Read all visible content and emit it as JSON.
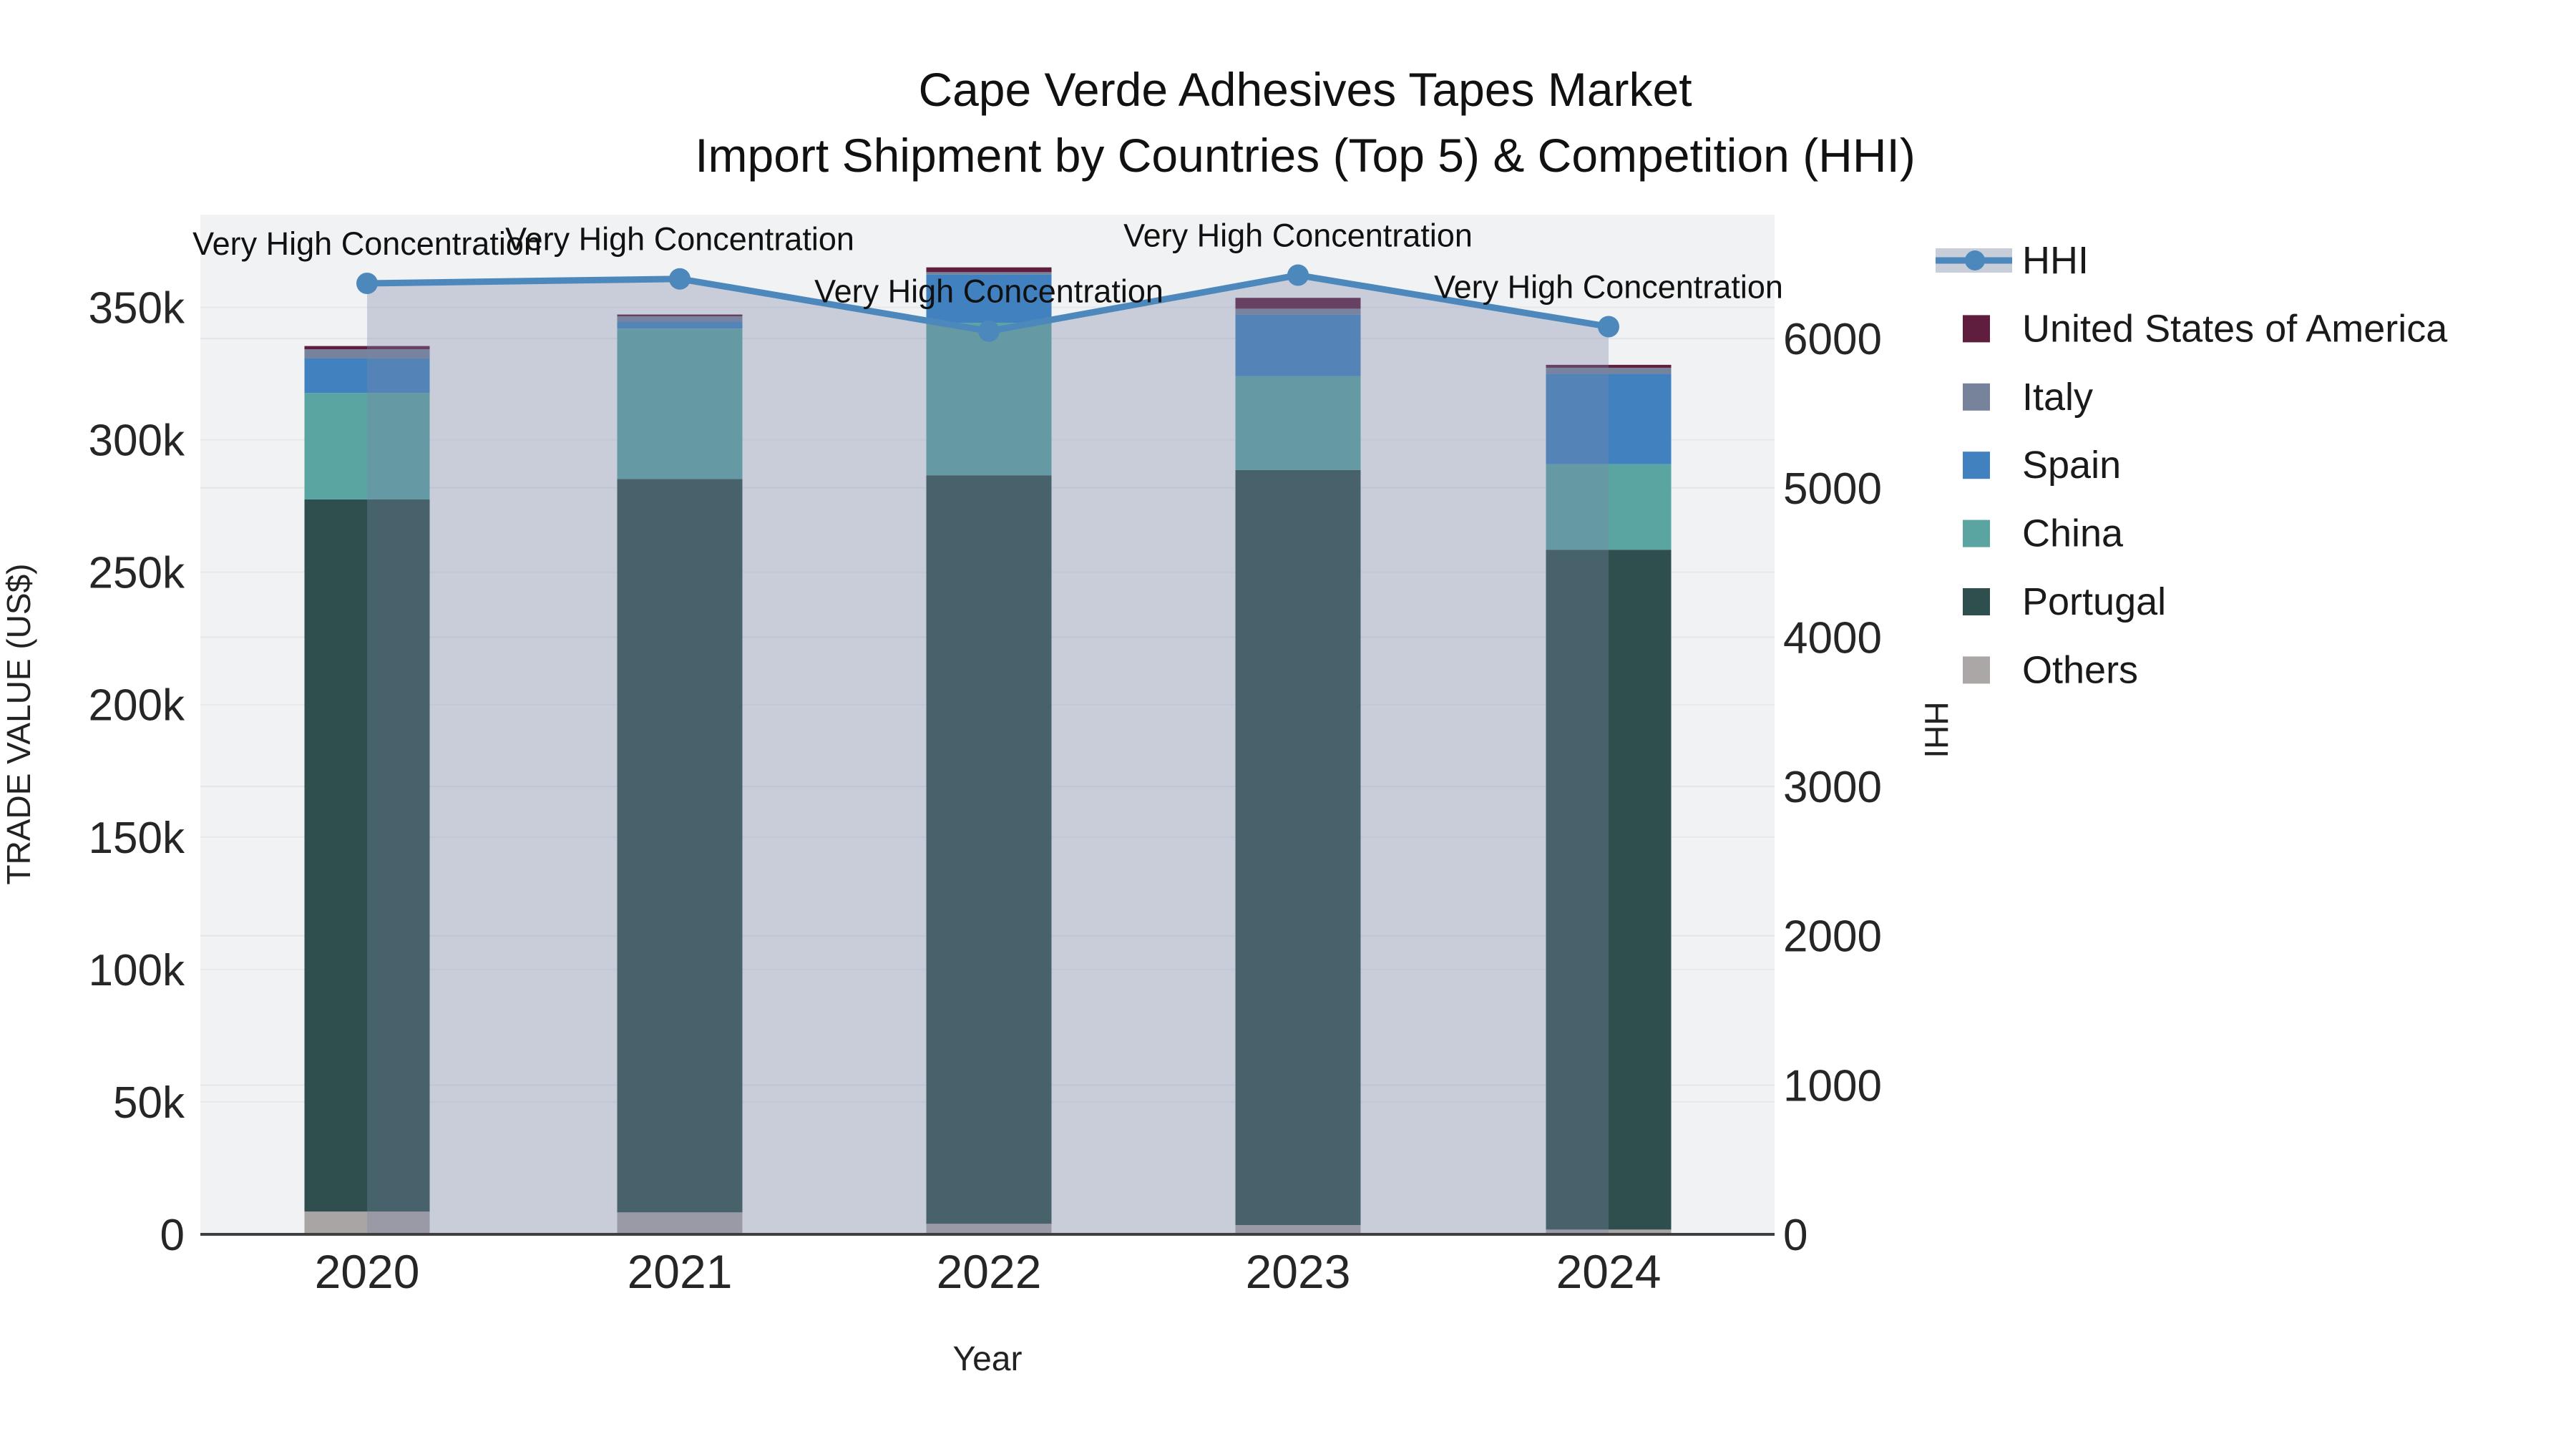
{
  "title": {
    "line1": "Cape Verde Adhesives Tapes Market",
    "line2": "Import Shipment by Countries (Top 5) & Competition (HHI)"
  },
  "axes": {
    "x_title": "Year",
    "y_left_title": "TRADE VALUE (US$)",
    "y_right_title": "HHI",
    "x_tick_labels": [
      "2020",
      "2021",
      "2022",
      "2023",
      "2024"
    ],
    "y_left_tick_labels": [
      "0",
      "50k",
      "100k",
      "150k",
      "200k",
      "250k",
      "300k",
      "350k"
    ],
    "y_right_tick_labels": [
      "0",
      "1000",
      "2000",
      "3000",
      "4000",
      "5000",
      "6000"
    ]
  },
  "legend": {
    "items": [
      {
        "label": "HHI",
        "type": "line",
        "color": "#4d88bc",
        "band_color": "#c8cdda"
      },
      {
        "label": "United States of America",
        "type": "swatch",
        "color": "#5f1e3e"
      },
      {
        "label": "Italy",
        "type": "swatch",
        "color": "#77839a"
      },
      {
        "label": "Spain",
        "type": "swatch",
        "color": "#4181c0"
      },
      {
        "label": "China",
        "type": "swatch",
        "color": "#5aa5a2"
      },
      {
        "label": "Portugal",
        "type": "swatch",
        "color": "#2e4f4d"
      },
      {
        "label": "Others",
        "type": "swatch",
        "color": "#aba7a7"
      }
    ]
  },
  "chart_data": {
    "type": "bar",
    "subtype": "stacked-bars-with-line",
    "title": "Cape Verde Adhesives Tapes Market — Import Shipment by Countries (Top 5) & Competition (HHI)",
    "categories": [
      "2020",
      "2021",
      "2022",
      "2023",
      "2024"
    ],
    "xlabel": "Year",
    "ylabel_left": "TRADE VALUE (US$)",
    "ylabel_right": "HHI",
    "ylim_left": [
      0,
      385000
    ],
    "ylim_right": [
      0,
      6830
    ],
    "grid": true,
    "legend_position": "right",
    "plot_bg_color": "#f1f2f3",
    "area_fill_color": "rgba(122,135,171,0.34)",
    "stack_order_bottom_to_top": [
      "Others",
      "Portugal",
      "China",
      "Spain",
      "Italy",
      "United States of America"
    ],
    "series": [
      {
        "name": "Others",
        "color": "#a9a5a5",
        "values": [
          8600,
          8300,
          4000,
          3500,
          1800
        ]
      },
      {
        "name": "Portugal",
        "color": "#2e4f4d",
        "values": [
          268900,
          276900,
          282600,
          285100,
          256700
        ]
      },
      {
        "name": "China",
        "color": "#5aa5a2",
        "values": [
          40200,
          56800,
          57600,
          35400,
          32300
        ]
      },
      {
        "name": "Spain",
        "color": "#4181c0",
        "values": [
          13000,
          2600,
          18200,
          23200,
          34100
        ]
      },
      {
        "name": "Italy",
        "color": "#77839a",
        "values": [
          3500,
          2000,
          900,
          2300,
          2300
        ]
      },
      {
        "name": "United States of America",
        "color": "#5f1e3e",
        "values": [
          1200,
          700,
          1800,
          4100,
          1100
        ]
      }
    ],
    "totals": [
      335400,
      347300,
      365100,
      353600,
      328300
    ],
    "line_series": {
      "name": "HHI",
      "axis": "right",
      "color": "#4d88bc",
      "values": [
        6370,
        6400,
        6050,
        6425,
        6080
      ]
    },
    "annotations": [
      "Very High Concentration",
      "Very High Concentration",
      "Very High Concentration",
      "Very High Concentration",
      "Very High Concentration"
    ]
  }
}
